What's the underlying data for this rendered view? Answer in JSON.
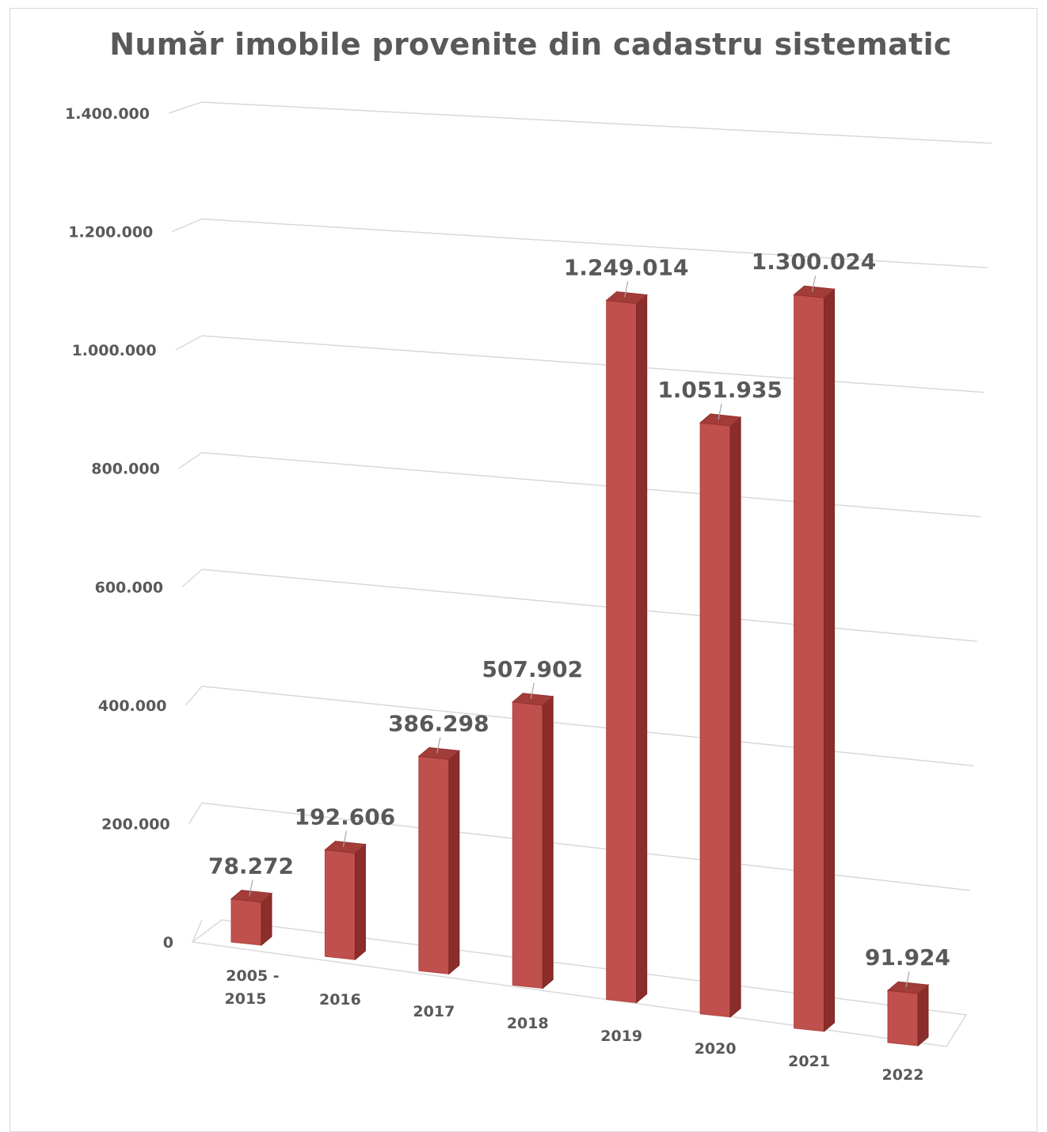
{
  "colors": {
    "bar_front": "#c0504d",
    "bar_side": "#8b2d2b",
    "bar_top": "#a33d3a",
    "grid": "#d9d9d9",
    "text": "#595959"
  },
  "chart_data": {
    "type": "bar",
    "title": "Număr imobile provenite din cadastru sistematic",
    "categories": [
      "2005 - 2015",
      "2016",
      "2017",
      "2018",
      "2019",
      "2020",
      "2021",
      "2022"
    ],
    "values": [
      78272,
      192606,
      386298,
      507902,
      1249014,
      1051935,
      1300024,
      91924
    ],
    "data_labels": [
      "78.272",
      "192.606",
      "386.298",
      "507.902",
      "1.249.014",
      "1.051.935",
      "1.300.024",
      "91.924"
    ],
    "yticks": [
      0,
      200000,
      400000,
      600000,
      800000,
      1000000,
      1200000,
      1400000
    ],
    "ytick_labels": [
      "0",
      "200.000",
      "400.000",
      "600.000",
      "800.000",
      "1.000.000",
      "1.200.000",
      "1.400.000"
    ],
    "ylim": [
      0,
      1400000
    ],
    "grid": true,
    "style": "3d-perspective",
    "legend": "none"
  }
}
